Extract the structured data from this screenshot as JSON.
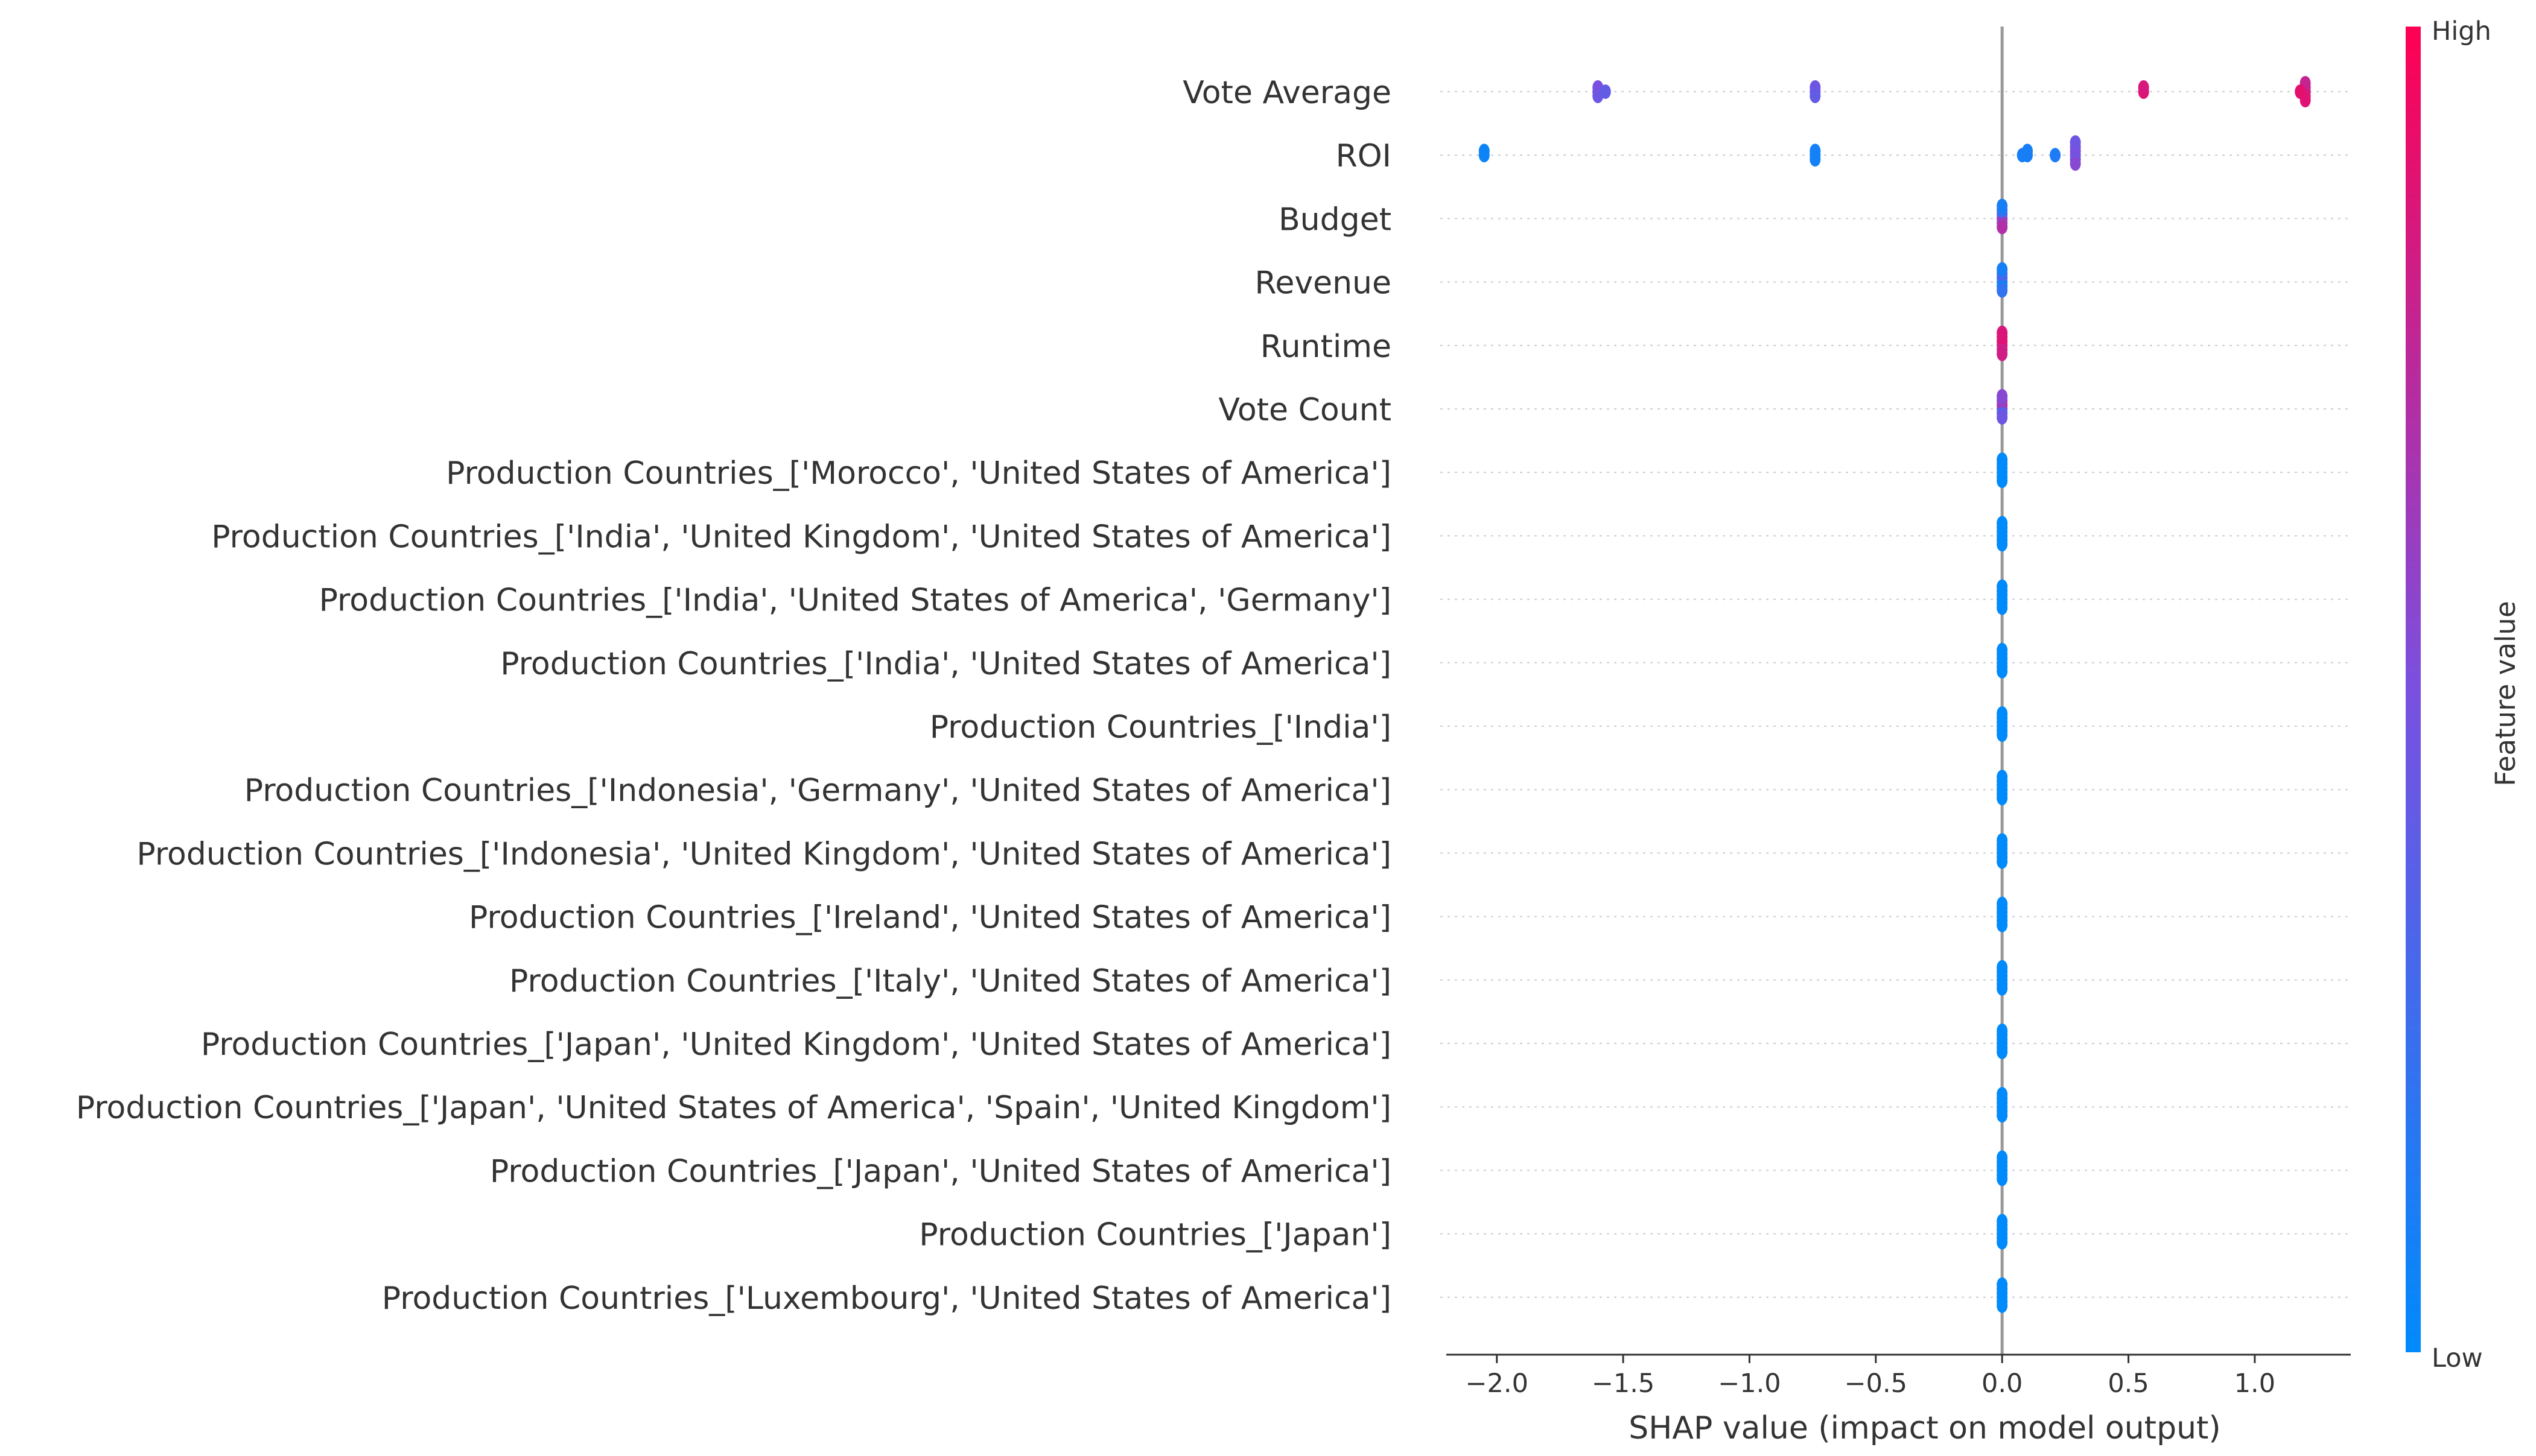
{
  "chart_data": {
    "type": "scatter",
    "subtype": "shap-beeswarm-summary",
    "xlabel": "SHAP value (impact on model output)",
    "xlim": [
      -2.2,
      1.38
    ],
    "x_ticks": [
      -2.0,
      -1.5,
      -1.0,
      -0.5,
      0.0,
      0.5,
      1.0
    ],
    "x_tick_labels": [
      "−2.0",
      "−1.5",
      "−1.0",
      "−0.5",
      "0.0",
      "0.5",
      "1.0"
    ],
    "grid": false,
    "colorbar": {
      "label": "Feature value",
      "high_label": "High",
      "low_label": "Low",
      "low_color": "#008afb",
      "mid_color": "#7a50e0",
      "high_color": "#ff0052"
    },
    "features": [
      {
        "name": "Vote Average",
        "points": [
          {
            "x": -1.6,
            "v": 0.55
          },
          {
            "x": -1.6,
            "v": 0.5
          },
          {
            "x": -1.6,
            "v": 0.45
          },
          {
            "x": -1.57,
            "v": 0.4
          },
          {
            "x": -0.74,
            "v": 0.5
          },
          {
            "x": -0.74,
            "v": 0.45
          },
          {
            "x": -0.74,
            "v": 0.4
          },
          {
            "x": 0.56,
            "v": 0.88
          },
          {
            "x": 0.56,
            "v": 0.85
          },
          {
            "x": 1.2,
            "v": 0.8
          },
          {
            "x": 1.2,
            "v": 0.82
          },
          {
            "x": 1.2,
            "v": 0.85
          },
          {
            "x": 1.2,
            "v": 0.78
          },
          {
            "x": 1.2,
            "v": 0.88
          },
          {
            "x": 1.18,
            "v": 0.9
          }
        ]
      },
      {
        "name": "ROI",
        "points": [
          {
            "x": -2.05,
            "v": 0.05
          },
          {
            "x": -2.05,
            "v": 0.05
          },
          {
            "x": -0.74,
            "v": 0.08
          },
          {
            "x": -0.74,
            "v": 0.08
          },
          {
            "x": -0.74,
            "v": 0.08
          },
          {
            "x": 0.08,
            "v": 0.1
          },
          {
            "x": 0.1,
            "v": 0.1
          },
          {
            "x": 0.1,
            "v": 0.1
          },
          {
            "x": 0.21,
            "v": 0.12
          },
          {
            "x": 0.29,
            "v": 0.5
          },
          {
            "x": 0.29,
            "v": 0.55
          },
          {
            "x": 0.29,
            "v": 0.45
          },
          {
            "x": 0.29,
            "v": 0.5
          },
          {
            "x": 0.29,
            "v": 0.55
          },
          {
            "x": 0.29,
            "v": 0.45
          }
        ]
      },
      {
        "name": "Budget",
        "points": [
          {
            "x": 0.0,
            "v": 0.85
          },
          {
            "x": 0.0,
            "v": 0.35
          },
          {
            "x": 0.0,
            "v": 0.6
          },
          {
            "x": 0.0,
            "v": 0.2
          },
          {
            "x": 0.0,
            "v": 0.7
          },
          {
            "x": 0.0,
            "v": 0.1
          }
        ]
      },
      {
        "name": "Revenue",
        "points": [
          {
            "x": 0.0,
            "v": 0.15
          },
          {
            "x": 0.0,
            "v": 0.25
          },
          {
            "x": 0.0,
            "v": 0.1
          },
          {
            "x": 0.0,
            "v": 0.3
          },
          {
            "x": 0.0,
            "v": 0.2
          },
          {
            "x": 0.0,
            "v": 0.1
          }
        ]
      },
      {
        "name": "Runtime",
        "points": [
          {
            "x": 0.0,
            "v": 0.85
          },
          {
            "x": 0.0,
            "v": 0.9
          },
          {
            "x": 0.0,
            "v": 0.8
          },
          {
            "x": 0.0,
            "v": 0.88
          },
          {
            "x": 0.0,
            "v": 0.82
          },
          {
            "x": 0.0,
            "v": 0.86
          }
        ]
      },
      {
        "name": "Vote Count",
        "points": [
          {
            "x": 0.0,
            "v": 0.5
          },
          {
            "x": 0.0,
            "v": 0.7
          },
          {
            "x": 0.0,
            "v": 0.35
          },
          {
            "x": 0.0,
            "v": 0.6
          },
          {
            "x": 0.0,
            "v": 0.45
          },
          {
            "x": 0.0,
            "v": 0.55
          }
        ]
      },
      {
        "name": "Production Countries_['Morocco', 'United States of America']",
        "points": [
          {
            "x": 0.0,
            "v": 0.0
          },
          {
            "x": 0.0,
            "v": 0.0
          },
          {
            "x": 0.0,
            "v": 0.0
          },
          {
            "x": 0.0,
            "v": 0.0
          },
          {
            "x": 0.0,
            "v": 0.0
          },
          {
            "x": 0.0,
            "v": 0.0
          }
        ]
      },
      {
        "name": "Production Countries_['India', 'United Kingdom', 'United States of America']",
        "points": [
          {
            "x": 0.0,
            "v": 0.0
          },
          {
            "x": 0.0,
            "v": 0.0
          },
          {
            "x": 0.0,
            "v": 0.0
          },
          {
            "x": 0.0,
            "v": 0.0
          },
          {
            "x": 0.0,
            "v": 0.0
          },
          {
            "x": 0.0,
            "v": 0.0
          }
        ]
      },
      {
        "name": "Production Countries_['India', 'United States of America', 'Germany']",
        "points": [
          {
            "x": 0.0,
            "v": 0.0
          },
          {
            "x": 0.0,
            "v": 0.0
          },
          {
            "x": 0.0,
            "v": 0.0
          },
          {
            "x": 0.0,
            "v": 0.0
          },
          {
            "x": 0.0,
            "v": 0.0
          },
          {
            "x": 0.0,
            "v": 0.0
          }
        ]
      },
      {
        "name": "Production Countries_['India', 'United States of America']",
        "points": [
          {
            "x": 0.0,
            "v": 0.0
          },
          {
            "x": 0.0,
            "v": 0.0
          },
          {
            "x": 0.0,
            "v": 0.0
          },
          {
            "x": 0.0,
            "v": 0.0
          },
          {
            "x": 0.0,
            "v": 0.0
          },
          {
            "x": 0.0,
            "v": 0.0
          }
        ]
      },
      {
        "name": "Production Countries_['India']",
        "points": [
          {
            "x": 0.0,
            "v": 0.0
          },
          {
            "x": 0.0,
            "v": 0.0
          },
          {
            "x": 0.0,
            "v": 0.0
          },
          {
            "x": 0.0,
            "v": 0.0
          },
          {
            "x": 0.0,
            "v": 0.0
          },
          {
            "x": 0.0,
            "v": 0.0
          }
        ]
      },
      {
        "name": "Production Countries_['Indonesia', 'Germany', 'United States of America']",
        "points": [
          {
            "x": 0.0,
            "v": 0.0
          },
          {
            "x": 0.0,
            "v": 0.0
          },
          {
            "x": 0.0,
            "v": 0.0
          },
          {
            "x": 0.0,
            "v": 0.0
          },
          {
            "x": 0.0,
            "v": 0.0
          },
          {
            "x": 0.0,
            "v": 0.0
          }
        ]
      },
      {
        "name": "Production Countries_['Indonesia', 'United Kingdom', 'United States of America']",
        "points": [
          {
            "x": 0.0,
            "v": 0.0
          },
          {
            "x": 0.0,
            "v": 0.0
          },
          {
            "x": 0.0,
            "v": 0.0
          },
          {
            "x": 0.0,
            "v": 0.0
          },
          {
            "x": 0.0,
            "v": 0.0
          },
          {
            "x": 0.0,
            "v": 0.0
          }
        ]
      },
      {
        "name": "Production Countries_['Ireland', 'United States of America']",
        "points": [
          {
            "x": 0.0,
            "v": 0.0
          },
          {
            "x": 0.0,
            "v": 0.0
          },
          {
            "x": 0.0,
            "v": 0.0
          },
          {
            "x": 0.0,
            "v": 0.0
          },
          {
            "x": 0.0,
            "v": 0.0
          },
          {
            "x": 0.0,
            "v": 0.0
          }
        ]
      },
      {
        "name": "Production Countries_['Italy', 'United States of America']",
        "points": [
          {
            "x": 0.0,
            "v": 0.0
          },
          {
            "x": 0.0,
            "v": 0.0
          },
          {
            "x": 0.0,
            "v": 0.0
          },
          {
            "x": 0.0,
            "v": 0.0
          },
          {
            "x": 0.0,
            "v": 0.0
          },
          {
            "x": 0.0,
            "v": 0.0
          }
        ]
      },
      {
        "name": "Production Countries_['Japan', 'United Kingdom', 'United States of America']",
        "points": [
          {
            "x": 0.0,
            "v": 0.0
          },
          {
            "x": 0.0,
            "v": 0.0
          },
          {
            "x": 0.0,
            "v": 0.0
          },
          {
            "x": 0.0,
            "v": 0.0
          },
          {
            "x": 0.0,
            "v": 0.0
          },
          {
            "x": 0.0,
            "v": 0.0
          }
        ]
      },
      {
        "name": "Production Countries_['Japan', 'United States of America', 'Spain', 'United Kingdom']",
        "points": [
          {
            "x": 0.0,
            "v": 0.0
          },
          {
            "x": 0.0,
            "v": 0.0
          },
          {
            "x": 0.0,
            "v": 0.0
          },
          {
            "x": 0.0,
            "v": 0.0
          },
          {
            "x": 0.0,
            "v": 0.0
          },
          {
            "x": 0.0,
            "v": 0.0
          }
        ]
      },
      {
        "name": "Production Countries_['Japan', 'United States of America']",
        "points": [
          {
            "x": 0.0,
            "v": 0.0
          },
          {
            "x": 0.0,
            "v": 0.0
          },
          {
            "x": 0.0,
            "v": 0.0
          },
          {
            "x": 0.0,
            "v": 0.0
          },
          {
            "x": 0.0,
            "v": 0.0
          },
          {
            "x": 0.0,
            "v": 0.0
          }
        ]
      },
      {
        "name": "Production Countries_['Japan']",
        "points": [
          {
            "x": 0.0,
            "v": 0.0
          },
          {
            "x": 0.0,
            "v": 0.0
          },
          {
            "x": 0.0,
            "v": 0.0
          },
          {
            "x": 0.0,
            "v": 0.0
          },
          {
            "x": 0.0,
            "v": 0.0
          },
          {
            "x": 0.0,
            "v": 0.0
          }
        ]
      },
      {
        "name": "Production Countries_['Luxembourg', 'United States of America']",
        "points": [
          {
            "x": 0.0,
            "v": 0.0
          },
          {
            "x": 0.0,
            "v": 0.0
          },
          {
            "x": 0.0,
            "v": 0.0
          },
          {
            "x": 0.0,
            "v": 0.0
          },
          {
            "x": 0.0,
            "v": 0.0
          },
          {
            "x": 0.0,
            "v": 0.0
          }
        ]
      }
    ]
  }
}
